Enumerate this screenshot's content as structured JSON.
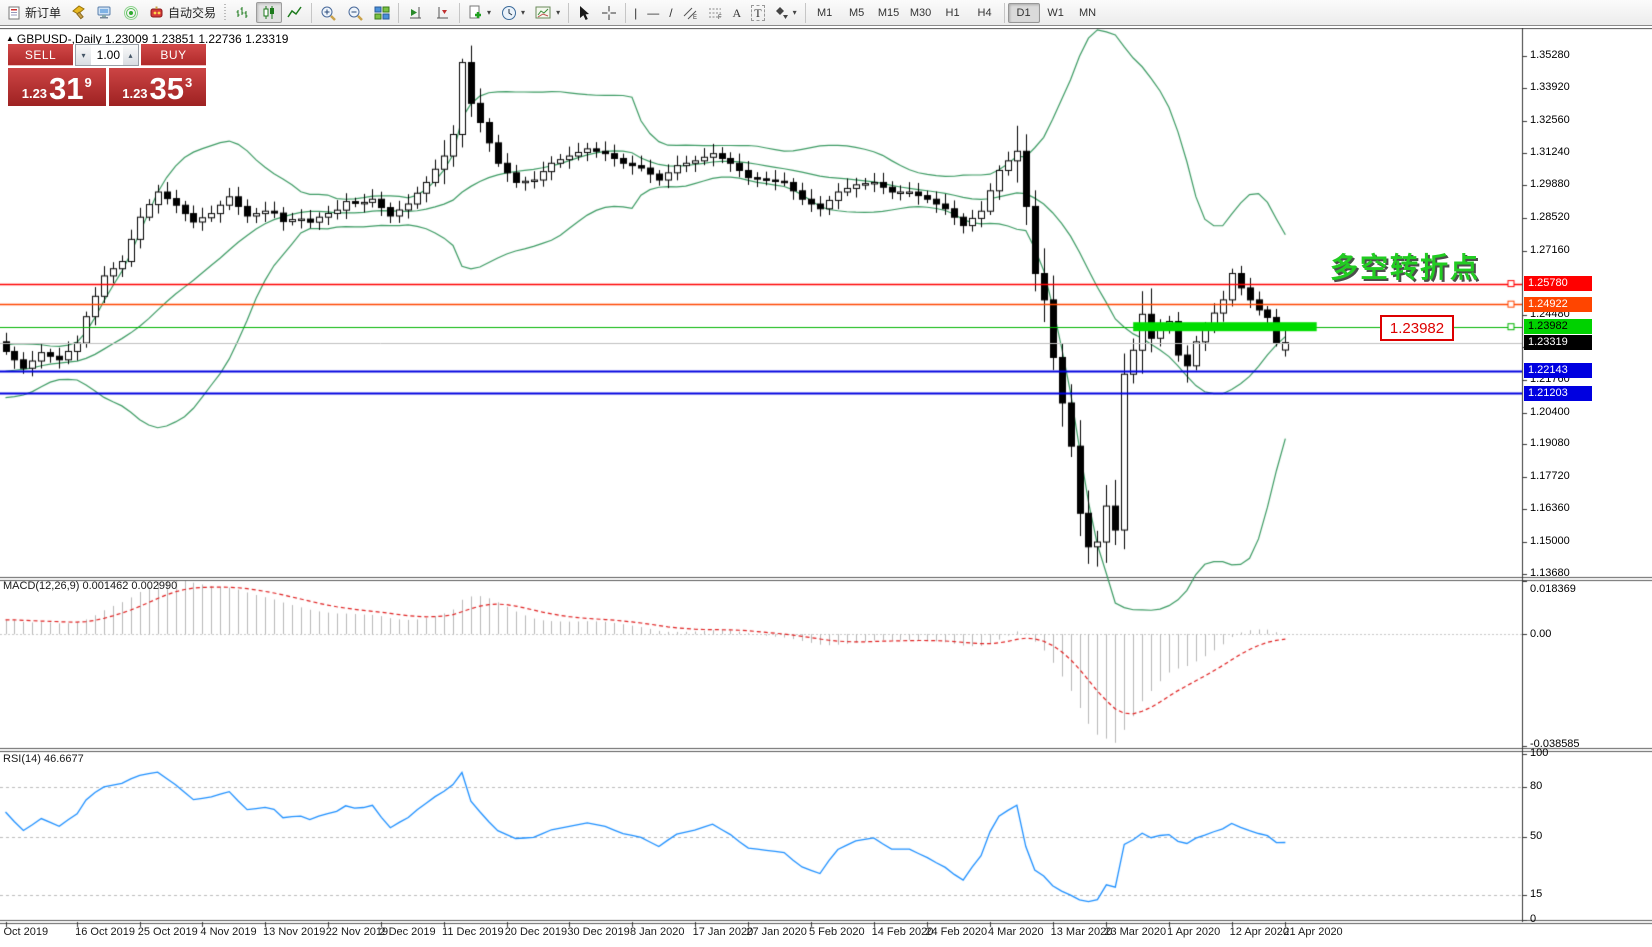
{
  "toolbar": {
    "new_order_label": "新订单",
    "algo_trading_label": "自动交易",
    "caret": "▾",
    "icon_glyphs": {
      "vline": "|",
      "hline": "—",
      "trendline": "/",
      "channel": "E",
      "fibo": "F",
      "text_tool": "A",
      "label_tool": "T"
    },
    "timeframes": [
      "M1",
      "M5",
      "M15",
      "M30",
      "H1",
      "H4",
      "D1",
      "W1",
      "MN"
    ],
    "active_timeframe": "D1"
  },
  "chart_header": {
    "symbol_arrow": "▲",
    "title": "GBPUSD-,Daily  1.23009 1.23851 1.22736 1.23319"
  },
  "trade_panel": {
    "sell_label": "SELL",
    "buy_label": "BUY",
    "volume": "1.00",
    "vol_down_glyph": "▾",
    "vol_up_glyph": "▴",
    "sell_price": {
      "prefix": "1.23",
      "big": "31",
      "sup": "9"
    },
    "buy_price": {
      "prefix": "1.23",
      "big": "35",
      "sup": "3"
    }
  },
  "annotations": {
    "turning_point": "多空转折点",
    "price_flag": "1.23982"
  },
  "indicator_labels": {
    "macd": "MACD(12,26,9) 0.001462 0.002990",
    "rsi": "RSI(14) 46.6677"
  },
  "chart_data": {
    "type": "candlestick",
    "symbol": "GBPUSD-",
    "period": "Daily",
    "ohlc_current": {
      "open": 1.23009,
      "high": 1.23851,
      "low": 1.22736,
      "close": 1.23319
    },
    "price_top": 1.364,
    "price_bottom": 1.135,
    "y_axis_ticks": [
      1.3528,
      1.3392,
      1.3256,
      1.3124,
      1.2988,
      1.2852,
      1.2716,
      1.2448,
      1.2312,
      1.2176,
      1.204,
      1.1908,
      1.1772,
      1.1636,
      1.15,
      1.1368
    ],
    "x_labels": [
      "Oct 2019",
      "16 Oct 2019",
      "25 Oct 2019",
      "4 Nov 2019",
      "13 Nov 2019",
      "22 Nov 2019",
      "2 Dec 2019",
      "11 Dec 2019",
      "20 Dec 2019",
      "30 Dec 2019",
      "8 Jan 2020",
      "17 Jan 2020",
      "27 Jan 2020",
      "5 Feb 2020",
      "14 Feb 2020",
      "24 Feb 2020",
      "4 Mar 2020",
      "13 Mar 2020",
      "23 Mar 2020",
      "1 Apr 2020",
      "12 Apr 2020",
      "21 Apr 2020"
    ],
    "x_label_indices": [
      0,
      8,
      15,
      22,
      29,
      36,
      42,
      49,
      56,
      63,
      70,
      77,
      83,
      90,
      97,
      103,
      110,
      117,
      123,
      130,
      137,
      143
    ],
    "candle_count": 144,
    "close_anchors": [
      [
        0,
        1.2295
      ],
      [
        2,
        1.2225
      ],
      [
        3,
        1.2255
      ],
      [
        4,
        1.229
      ],
      [
        6,
        1.226
      ],
      [
        8,
        1.233
      ],
      [
        9,
        1.244
      ],
      [
        11,
        1.261
      ],
      [
        13,
        1.267
      ],
      [
        15,
        1.2855
      ],
      [
        17,
        1.296
      ],
      [
        19,
        1.2905
      ],
      [
        21,
        1.2835
      ],
      [
        23,
        1.287
      ],
      [
        25,
        1.294
      ],
      [
        27,
        1.286
      ],
      [
        29,
        1.288
      ],
      [
        32,
        1.2845
      ],
      [
        35,
        1.2855
      ],
      [
        38,
        1.292
      ],
      [
        41,
        1.293
      ],
      [
        43,
        1.286
      ],
      [
        45,
        1.291
      ],
      [
        47,
        1.3
      ],
      [
        49,
        1.311
      ],
      [
        50,
        1.32
      ],
      [
        51,
        1.35
      ],
      [
        52,
        1.333
      ],
      [
        53,
        1.325
      ],
      [
        55,
        1.308
      ],
      [
        57,
        1.3
      ],
      [
        59,
        1.301
      ],
      [
        61,
        1.308
      ],
      [
        63,
        1.311
      ],
      [
        65,
        1.314
      ],
      [
        67,
        1.312
      ],
      [
        69,
        1.308
      ],
      [
        71,
        1.306
      ],
      [
        73,
        1.301
      ],
      [
        75,
        1.307
      ],
      [
        77,
        1.309
      ],
      [
        79,
        1.312
      ],
      [
        81,
        1.308
      ],
      [
        83,
        1.302
      ],
      [
        85,
        1.301
      ],
      [
        87,
        1.3
      ],
      [
        89,
        1.293
      ],
      [
        91,
        1.289
      ],
      [
        93,
        1.296
      ],
      [
        95,
        1.299
      ],
      [
        97,
        1.3
      ],
      [
        99,
        1.296
      ],
      [
        101,
        1.296
      ],
      [
        103,
        1.293
      ],
      [
        105,
        1.289
      ],
      [
        107,
        1.282
      ],
      [
        109,
        1.288
      ],
      [
        111,
        1.305
      ],
      [
        113,
        1.313
      ],
      [
        114,
        1.29
      ],
      [
        115,
        1.262
      ],
      [
        116,
        1.251
      ],
      [
        117,
        1.227
      ],
      [
        118,
        1.208
      ],
      [
        119,
        1.19
      ],
      [
        120,
        1.162
      ],
      [
        121,
        1.148
      ],
      [
        122,
        1.15
      ],
      [
        123,
        1.165
      ],
      [
        124,
        1.155
      ],
      [
        125,
        1.22
      ],
      [
        126,
        1.23
      ],
      [
        127,
        1.245
      ],
      [
        128,
        1.235
      ],
      [
        129,
        1.24
      ],
      [
        130,
        1.242
      ],
      [
        131,
        1.228
      ],
      [
        132,
        1.2235
      ],
      [
        133,
        1.2335
      ],
      [
        134,
        1.239
      ],
      [
        135,
        1.2455
      ],
      [
        136,
        1.251
      ],
      [
        137,
        1.262
      ],
      [
        138,
        1.256
      ],
      [
        139,
        1.251
      ],
      [
        140,
        1.2468
      ],
      [
        141,
        1.2437
      ],
      [
        142,
        1.233
      ],
      [
        143,
        1.23319
      ]
    ],
    "levels": [
      {
        "price": 1.2578,
        "label": "1.25780",
        "line": "#ff0000",
        "bg": "#ff0000",
        "fg": "#ffffff",
        "lw": 1.4,
        "marker": true
      },
      {
        "price": 1.24922,
        "label": "1.24922",
        "line": "#ff4500",
        "bg": "#ff4500",
        "fg": "#ffffff",
        "lw": 1.4,
        "marker": true
      },
      {
        "price": 1.23982,
        "label": "1.23982",
        "line": "#00b400",
        "bg": "#00d200",
        "fg": "#000000",
        "lw": 1.2,
        "marker": true
      },
      {
        "price": 1.23319,
        "label": "1.23319",
        "line": "#c0c0c0",
        "bg": "#000000",
        "fg": "#ffffff",
        "lw": 1,
        "marker": false
      },
      {
        "price": 1.22143,
        "label": "1.22143",
        "line": "#0000e0",
        "bg": "#0000e0",
        "fg": "#ffffff",
        "lw": 2,
        "marker": false
      },
      {
        "price": 1.21203,
        "label": "1.21203",
        "line": "#0000e0",
        "bg": "#0000e0",
        "fg": "#ffffff",
        "lw": 2,
        "marker": false
      }
    ],
    "highlight_bar": {
      "price": 1.23982,
      "from_index": 126,
      "to_index": 146.5,
      "color": "#00dc00",
      "thickness": 9
    },
    "indicators": {
      "bollinger": {
        "period": 20,
        "deviation": 2,
        "color": "#3c9b63"
      },
      "macd": {
        "fast": 12,
        "slow": 26,
        "signal": 9,
        "value": 0.001462,
        "signal_value": 0.00299,
        "scale_max": 0.018369,
        "scale_min": -0.038585,
        "tick_labels": [
          "0.018369",
          "0.00",
          "-0.038585"
        ],
        "hist_color": "#b8b8b8",
        "signal_color": "#e02020"
      },
      "rsi": {
        "period": 14,
        "value": 46.6677,
        "ticks": [
          100,
          80,
          50,
          15,
          0
        ],
        "levels": [
          80,
          50,
          15
        ],
        "line_color": "#1e90ff"
      }
    }
  }
}
